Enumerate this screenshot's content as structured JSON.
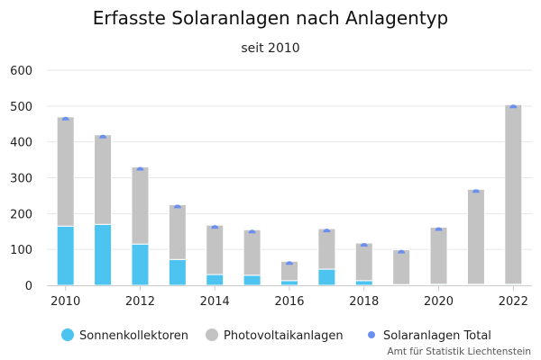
{
  "chart_data": {
    "type": "bar",
    "stacked": true,
    "title": "Erfasste Solaranlagen nach Anlagentyp",
    "subtitle": "seit 2010",
    "xlabel": "",
    "ylabel": "",
    "ylim": [
      0,
      600
    ],
    "yticks": [
      0,
      100,
      200,
      300,
      400,
      500,
      600
    ],
    "x": [
      2010,
      2011,
      2012,
      2013,
      2014,
      2015,
      2016,
      2017,
      2018,
      2019,
      2020,
      2021,
      2022
    ],
    "xtick_labels": [
      "2010",
      "2012",
      "2014",
      "2016",
      "2018",
      "2020",
      "2022"
    ],
    "grid": true,
    "legend_position": "bottom",
    "series": [
      {
        "name": "Sonnenkollektoren",
        "type": "bar",
        "color": "#4cc4ef",
        "values": [
          165,
          170,
          115,
          72,
          30,
          28,
          13,
          45,
          13,
          2,
          3,
          3,
          3
        ]
      },
      {
        "name": "Photovoltaikanlagen",
        "type": "bar",
        "color": "#c3c3c3",
        "values": [
          305,
          250,
          215,
          153,
          138,
          127,
          54,
          113,
          105,
          97,
          159,
          265,
          501
        ]
      },
      {
        "name": "Solaranlagen Total",
        "type": "scatter",
        "color": "#6b8ff0",
        "values": [
          470,
          420,
          330,
          225,
          168,
          155,
          67,
          158,
          118,
          99,
          162,
          268,
          504
        ]
      }
    ],
    "credits": "Amt für Statistik Liechtenstein"
  }
}
